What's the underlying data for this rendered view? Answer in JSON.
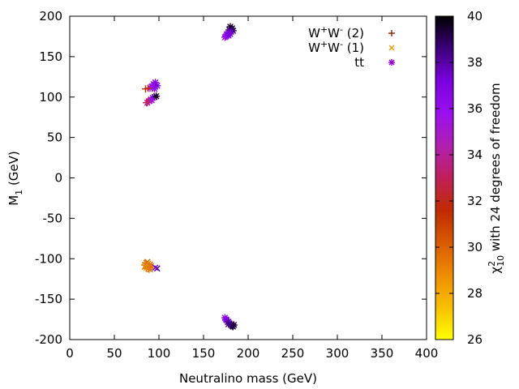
{
  "chart_data": {
    "type": "scatter",
    "title": "",
    "xlabel": "Neutralino mass (GeV)",
    "ylabel_base": "M",
    "ylabel_sub": "1",
    "ylabel_unit": " (GeV)",
    "xlim": [
      0,
      400
    ],
    "ylim": [
      -200,
      200
    ],
    "xticks": [
      "0",
      "50",
      "100",
      "150",
      "200",
      "250",
      "300",
      "350",
      "400"
    ],
    "yticks": [
      "-200",
      "-150",
      "-100",
      "-50",
      "0",
      "50",
      "100",
      "150",
      "200"
    ],
    "grid": false,
    "legend_position": "top-right",
    "legend": [
      {
        "label_base": "W",
        "sup1": "+",
        "mid": "W",
        "sup2": "-",
        "suffix": " (2)",
        "marker": "plus",
        "color": "#8b2500"
      },
      {
        "label_base": "W",
        "sup1": "+",
        "mid": "W",
        "sup2": "-",
        "suffix": " (1)",
        "marker": "cross",
        "color": "#e69f00"
      },
      {
        "label_base": "tt",
        "sup1": "",
        "mid": "",
        "sup2": "",
        "suffix": "",
        "marker": "star",
        "color": "#9400d3"
      }
    ],
    "colorbar": {
      "label_chi": "χ",
      "label_sup": "2",
      "label_sub": "10",
      "label_rest": " with 24 degrees of freedom",
      "range": [
        26,
        40
      ],
      "ticks": [
        "26",
        "28",
        "30",
        "32",
        "34",
        "36",
        "38",
        "40"
      ],
      "palette": [
        "#000000",
        "#3c007a",
        "#7a00e0",
        "#9a10f0",
        "#b020b0",
        "#c0205a",
        "#c02a00",
        "#d85a00",
        "#ee8c00",
        "#f8c000",
        "#ffff00"
      ]
    },
    "series": [
      {
        "name": "tt",
        "marker": "star",
        "points": [
          [
            180,
            187,
            39.5
          ],
          [
            182,
            185,
            39.5
          ],
          [
            179,
            183,
            38.8
          ],
          [
            183,
            182,
            39
          ],
          [
            181,
            181,
            38
          ],
          [
            178,
            180,
            37.5
          ],
          [
            177,
            178,
            37
          ],
          [
            176,
            177,
            36.5
          ],
          [
            175,
            175,
            36
          ],
          [
            174,
            174,
            35.5
          ],
          [
            178,
            176,
            36.8
          ],
          [
            180,
            178,
            37.3
          ],
          [
            174,
            -173,
            36
          ],
          [
            175,
            -175,
            36.5
          ],
          [
            176,
            -176,
            37
          ],
          [
            178,
            -178,
            37.5
          ],
          [
            179,
            -180,
            38
          ],
          [
            181,
            -181,
            38.5
          ],
          [
            182,
            -183,
            39
          ],
          [
            183,
            -184,
            39.5
          ],
          [
            178,
            -181,
            38.4
          ],
          [
            184,
            -182,
            39.2
          ],
          [
            94,
            116,
            36
          ],
          [
            96,
            118,
            36.5
          ],
          [
            92,
            113,
            35.8
          ],
          [
            95,
            110,
            36
          ],
          [
            98,
            114,
            37
          ],
          [
            90,
            111,
            35.5
          ],
          [
            87,
            93,
            34
          ],
          [
            89,
            95,
            34.5
          ],
          [
            91,
            97,
            35
          ],
          [
            93,
            99,
            36
          ],
          [
            95,
            100,
            38
          ],
          [
            97,
            101,
            39.5
          ],
          [
            92,
            96,
            35.5
          ]
        ]
      },
      {
        "name": "W+W- (1)",
        "marker": "cross",
        "points": [
          [
            86,
            -105,
            29.5
          ],
          [
            88,
            -106,
            29.3
          ],
          [
            90,
            -107,
            29.7
          ],
          [
            85,
            -108,
            29
          ],
          [
            87,
            -109,
            29.2
          ],
          [
            89,
            -110,
            29.6
          ],
          [
            86,
            -111,
            28.8
          ],
          [
            88,
            -112,
            29.1
          ],
          [
            90,
            -113,
            29.8
          ],
          [
            84,
            -110,
            29.4
          ],
          [
            87,
            -104,
            30
          ],
          [
            91,
            -109,
            30.1
          ],
          [
            98,
            -112,
            38.5
          ],
          [
            96,
            -111,
            37
          ]
        ]
      },
      {
        "name": "W+W- (2)",
        "marker": "plus",
        "points": [
          [
            85,
            -105,
            29.4
          ],
          [
            88,
            -108,
            29.2
          ],
          [
            86,
            -112,
            29
          ],
          [
            90,
            -110,
            29.5
          ],
          [
            84,
            -108,
            28.9
          ],
          [
            89,
            -113,
            29.3
          ],
          [
            85,
            110,
            31.5
          ],
          [
            88,
            111,
            32
          ],
          [
            88,
            95,
            33.5
          ],
          [
            86,
            93,
            33
          ]
        ]
      }
    ]
  }
}
